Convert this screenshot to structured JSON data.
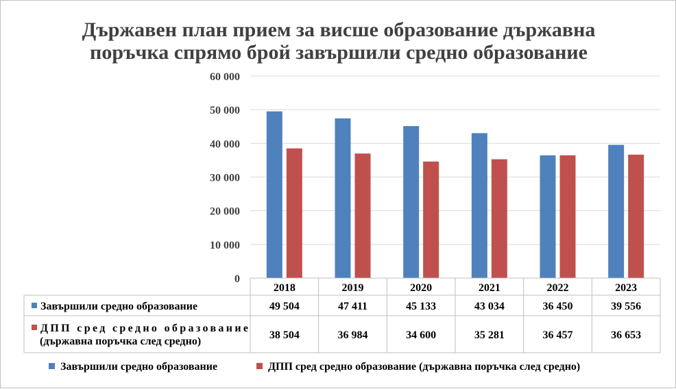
{
  "chart_data": {
    "type": "bar",
    "title": "Държавен план прием за висше образование държавна поръчка спрямо брой завършили средно образование",
    "title_lines": [
      "Държавен план прием за висше образование държавна",
      "поръчка спрямо брой завършили средно образование"
    ],
    "categories": [
      "2018",
      "2019",
      "2020",
      "2021",
      "2022",
      "2023"
    ],
    "ylim": [
      0,
      60000
    ],
    "yticks": [
      0,
      10000,
      20000,
      30000,
      40000,
      50000,
      60000
    ],
    "ytick_labels": [
      "0",
      "10 000",
      "20 000",
      "30 000",
      "40 000",
      "50 000",
      "60 000"
    ],
    "grid": true,
    "legend_position": "bottom",
    "data_table": true,
    "series": [
      {
        "name": "Завършили средно образование",
        "table_label_lines": [
          "Завършили средно образование"
        ],
        "color": "#4f81bd",
        "values": [
          49504,
          47411,
          45133,
          43034,
          36450,
          39556
        ],
        "value_labels": [
          "49 504",
          "47 411",
          "45 133",
          "43 034",
          "36 450",
          "39 556"
        ]
      },
      {
        "name": "ДПП сред средно образование (държавна поръчка след средно)",
        "table_label_lines": [
          "ДПП сред средно образование",
          "(държавна поръчка след средно)"
        ],
        "color": "#c0504d",
        "values": [
          38504,
          36984,
          34600,
          35281,
          36457,
          36653
        ],
        "value_labels": [
          "38 504",
          "36 984",
          "34 600",
          "35 281",
          "36 457",
          "36 653"
        ]
      }
    ]
  }
}
